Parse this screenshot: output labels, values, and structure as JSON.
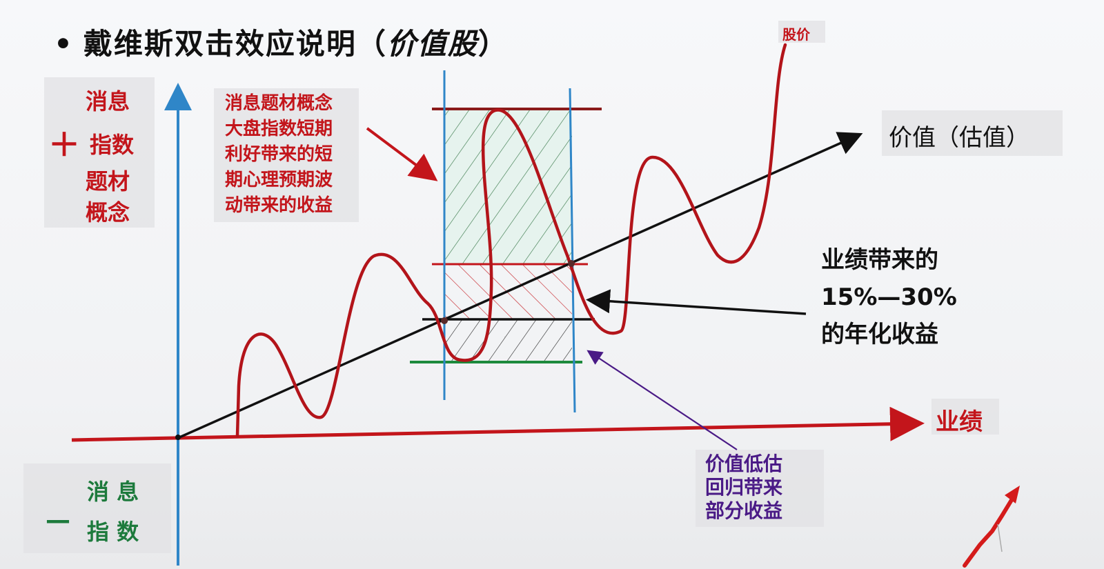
{
  "title": {
    "bullet": "•",
    "main": "戴维斯双击效应说明（",
    "italic": "价值股",
    "end": "）"
  },
  "left_plus": {
    "line1": "消息",
    "sign": "＋",
    "line2": "指数",
    "line3": "题材",
    "line4": "概念"
  },
  "left_minus": {
    "line1": "消 息",
    "sign": "—",
    "line2": "指 数"
  },
  "callout_top": [
    "消息题材概念",
    "大盘指数短期",
    "利好带来的短",
    "期心理预期波",
    "动带来的收益"
  ],
  "callout_right": [
    "业绩带来的",
    "15%—30%",
    "的年化收益"
  ],
  "callout_bottom": [
    "价值低估",
    "回归带来",
    "部分收益"
  ],
  "axis_labels": {
    "price": "股价",
    "value": "价值（估值）",
    "earnings": "业绩"
  },
  "colors": {
    "red": "#c3151b",
    "blue_axis": "#2f86c8",
    "green": "#1d7a3c",
    "purple": "#4a1a86",
    "black": "#111111"
  }
}
